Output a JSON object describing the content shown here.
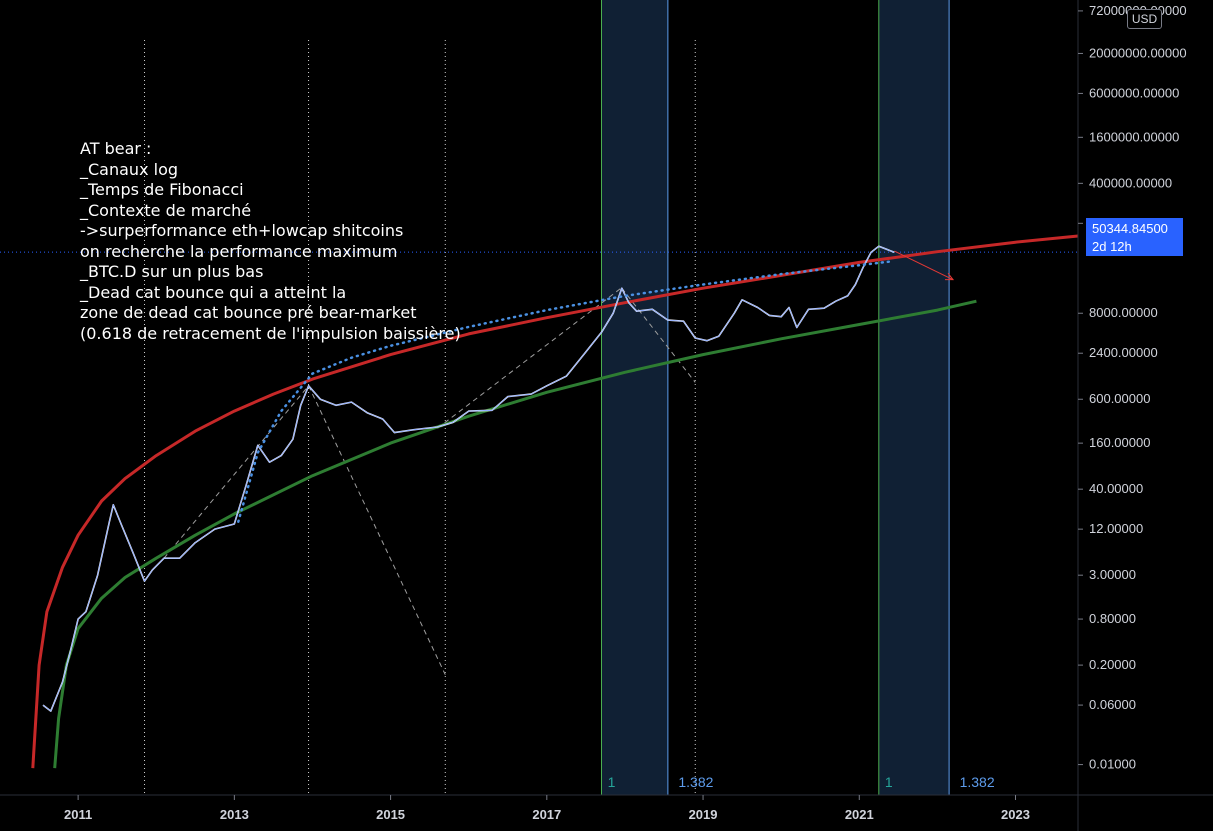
{
  "currency": "USD",
  "note": {
    "lines": [
      "AT bear :",
      "_Canaux log",
      "_Temps de Fibonacci",
      "_Contexte de marché",
      "->surperformance eth+lowcap shitcoins",
      "on recherche la performance maximum",
      "_BTC.D sur un plus bas",
      "_Dead cat bounce qui a atteint la",
      "zone de dead cat bounce pré bear-market",
      "(0.618 de retracement de l'impulsion baissière)"
    ]
  },
  "last_price": {
    "value": "50344.84500",
    "countdown": "2d 12h"
  },
  "fib_labels": [
    "1",
    "1.382",
    "1",
    "1.382"
  ],
  "colors": {
    "background": "#000000",
    "red_channel": "#c62828",
    "green_channel": "#2e7d32",
    "fib_zone": "#1e3a5f",
    "fib_line": "#5d9cec",
    "price_line": "#2962ff",
    "candles": "#ffffff"
  },
  "chart_data": {
    "type": "line",
    "scale": "log",
    "y_tick_labels": [
      "72000000.00000",
      "20000000.00000",
      "6000000.00000",
      "1600000.00000",
      "400000.00000",
      "120000.00000",
      "8000.00000",
      "2400.00000",
      "600.00000",
      "160.00000",
      "40.00000",
      "12.00000",
      "3.00000",
      "0.80000",
      "0.20000",
      "0.06000",
      "0.01000"
    ],
    "x_tick_labels": [
      "2011",
      "2013",
      "2015",
      "2017",
      "2019",
      "2021",
      "2023"
    ],
    "x_range": [
      2010.0,
      2023.8
    ],
    "y_range": [
      0.004,
      100000000
    ],
    "price_series": [
      [
        2010.55,
        0.06
      ],
      [
        2010.65,
        0.05
      ],
      [
        2010.8,
        0.12
      ],
      [
        2010.9,
        0.3
      ],
      [
        2011.0,
        0.8
      ],
      [
        2011.1,
        1.0
      ],
      [
        2011.25,
        3.0
      ],
      [
        2011.4,
        15
      ],
      [
        2011.45,
        25
      ],
      [
        2011.55,
        14
      ],
      [
        2011.7,
        6
      ],
      [
        2011.85,
        2.5
      ],
      [
        2011.95,
        3.5
      ],
      [
        2012.1,
        5
      ],
      [
        2012.3,
        5
      ],
      [
        2012.5,
        8
      ],
      [
        2012.75,
        12
      ],
      [
        2013.0,
        14
      ],
      [
        2013.15,
        45
      ],
      [
        2013.3,
        150
      ],
      [
        2013.45,
        90
      ],
      [
        2013.6,
        110
      ],
      [
        2013.75,
        180
      ],
      [
        2013.85,
        500
      ],
      [
        2013.95,
        900
      ],
      [
        2014.1,
        600
      ],
      [
        2014.3,
        500
      ],
      [
        2014.5,
        550
      ],
      [
        2014.7,
        400
      ],
      [
        2014.9,
        330
      ],
      [
        2015.05,
        220
      ],
      [
        2015.3,
        240
      ],
      [
        2015.6,
        260
      ],
      [
        2015.8,
        300
      ],
      [
        2016.0,
        420
      ],
      [
        2016.3,
        430
      ],
      [
        2016.5,
        650
      ],
      [
        2016.8,
        700
      ],
      [
        2017.0,
        900
      ],
      [
        2017.25,
        1200
      ],
      [
        2017.5,
        2500
      ],
      [
        2017.7,
        4500
      ],
      [
        2017.85,
        8000
      ],
      [
        2017.96,
        17000
      ],
      [
        2018.05,
        11000
      ],
      [
        2018.15,
        8500
      ],
      [
        2018.35,
        9000
      ],
      [
        2018.55,
        6500
      ],
      [
        2018.75,
        6300
      ],
      [
        2018.9,
        3800
      ],
      [
        2019.05,
        3500
      ],
      [
        2019.2,
        4000
      ],
      [
        2019.4,
        8000
      ],
      [
        2019.5,
        12000
      ],
      [
        2019.7,
        9500
      ],
      [
        2019.85,
        7500
      ],
      [
        2020.0,
        7200
      ],
      [
        2020.1,
        9500
      ],
      [
        2020.2,
        5200
      ],
      [
        2020.35,
        9000
      ],
      [
        2020.55,
        9300
      ],
      [
        2020.7,
        11500
      ],
      [
        2020.85,
        13500
      ],
      [
        2020.95,
        19000
      ],
      [
        2021.05,
        32000
      ],
      [
        2021.15,
        50000
      ],
      [
        2021.25,
        60000
      ],
      [
        2021.35,
        55000
      ],
      [
        2021.45,
        50000
      ]
    ],
    "red_channel": [
      [
        2010.42,
        0.009
      ],
      [
        2010.5,
        0.2
      ],
      [
        2010.6,
        1.0
      ],
      [
        2010.8,
        3.8
      ],
      [
        2011.0,
        10
      ],
      [
        2011.3,
        28
      ],
      [
        2011.6,
        55
      ],
      [
        2012.0,
        110
      ],
      [
        2012.5,
        230
      ],
      [
        2013.0,
        420
      ],
      [
        2013.5,
        700
      ],
      [
        2014.0,
        1100
      ],
      [
        2015.0,
        2300
      ],
      [
        2016.0,
        4300
      ],
      [
        2017.0,
        7000
      ],
      [
        2018.0,
        11000
      ],
      [
        2019.0,
        17000
      ],
      [
        2020.0,
        25000
      ],
      [
        2021.0,
        37000
      ],
      [
        2022.0,
        51000
      ],
      [
        2023.0,
        68000
      ],
      [
        2023.8,
        82000
      ]
    ],
    "green_channel": [
      [
        2010.7,
        0.009
      ],
      [
        2010.75,
        0.04
      ],
      [
        2010.85,
        0.2
      ],
      [
        2011.0,
        0.6
      ],
      [
        2011.3,
        1.5
      ],
      [
        2011.6,
        2.8
      ],
      [
        2012.0,
        5
      ],
      [
        2012.5,
        10
      ],
      [
        2013.0,
        19
      ],
      [
        2014.0,
        60
      ],
      [
        2015.0,
        160
      ],
      [
        2016.0,
        360
      ],
      [
        2017.0,
        740
      ],
      [
        2018.0,
        1350
      ],
      [
        2019.0,
        2300
      ],
      [
        2020.0,
        3700
      ],
      [
        2021.0,
        5700
      ],
      [
        2022.0,
        8800
      ],
      [
        2022.5,
        11500
      ]
    ],
    "dotted_curve": [
      [
        2013.05,
        15
      ],
      [
        2013.3,
        120
      ],
      [
        2013.6,
        420
      ],
      [
        2014.0,
        1300
      ],
      [
        2014.5,
        2100
      ],
      [
        2015.0,
        3000
      ],
      [
        2016.0,
        5300
      ],
      [
        2017.0,
        8800
      ],
      [
        2018.0,
        13500
      ],
      [
        2019.0,
        19000
      ],
      [
        2020.0,
        26000
      ],
      [
        2021.0,
        34000
      ],
      [
        2021.4,
        38000
      ]
    ],
    "dashed_lines": [
      [
        [
          2012.1,
          5
        ],
        [
          2013.95,
          900
        ]
      ],
      [
        [
          2013.95,
          900
        ],
        [
          2015.7,
          0.15
        ]
      ],
      [
        [
          2015.6,
          250
        ],
        [
          2017.95,
          17000
        ]
      ],
      [
        [
          2017.96,
          17000
        ],
        [
          2018.9,
          1000
        ]
      ]
    ],
    "red_arrow": [
      [
        2021.45,
        52000
      ],
      [
        2022.2,
        22000
      ]
    ],
    "vertical_dotted_x": [
      2011.85,
      2013.95,
      2015.7,
      2018.9
    ],
    "fib_zones": [
      [
        2017.7,
        2018.55
      ],
      [
        2021.25,
        2022.15
      ]
    ],
    "current_price": 50344.845,
    "current_price_line_x": 2010.0
  }
}
